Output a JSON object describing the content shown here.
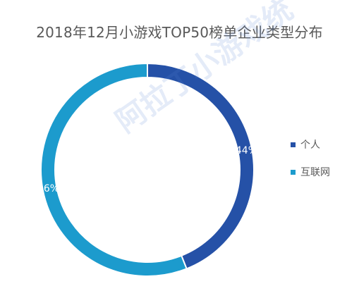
{
  "watermark": "阿拉丁小游戏统",
  "chart_data": {
    "type": "pie",
    "style": "donut",
    "title": "2018年12月小游戏TOP50榜单企业类型分布",
    "categories": [
      "个人",
      "互联网"
    ],
    "values": [
      44,
      56
    ],
    "value_unit": "%",
    "data_labels": [
      "44%",
      "56%"
    ],
    "colors": [
      "#2551A7",
      "#1C9BCD"
    ],
    "legend_position": "right"
  }
}
